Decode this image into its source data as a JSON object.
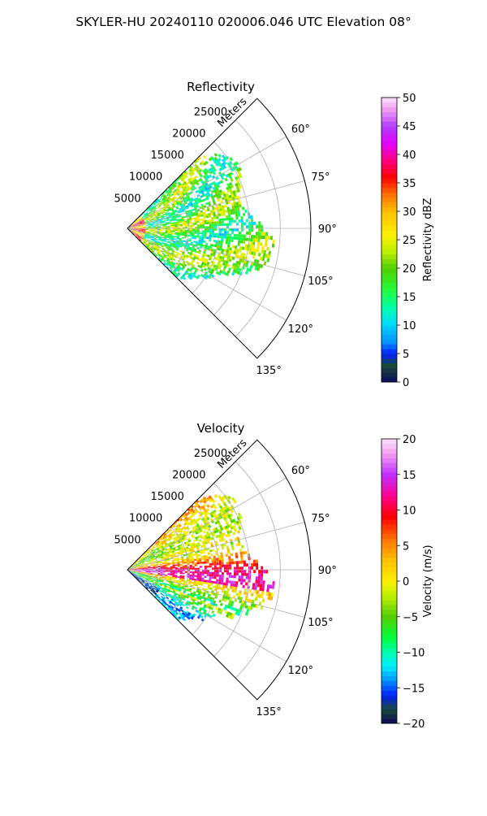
{
  "figure_title": "SKYLER-HU  20240110  020006.046 UTC Elevation 08°",
  "chart_data": [
    {
      "type": "heatmap",
      "projection": "polar-sector",
      "title": "Reflectivity",
      "radial_label": "Meters",
      "radial_ticks": [
        5000,
        10000,
        15000,
        20000,
        25000
      ],
      "radial_tick_labels": [
        "5000",
        "10000",
        "15000",
        "20000",
        "25000"
      ],
      "rlim": [
        0,
        30000
      ],
      "azimuth_range_deg": [
        45,
        135
      ],
      "azimuth_ticks": [
        60,
        75,
        90,
        105,
        120,
        135
      ],
      "azimuth_tick_labels": [
        "60°",
        "75°",
        "90°",
        "105°",
        "120°",
        "135°"
      ],
      "grid": true,
      "colorbar": {
        "label": "Reflectivity dBZ",
        "range": [
          0,
          50
        ],
        "ticks": [
          0,
          5,
          10,
          15,
          20,
          25,
          30,
          35,
          40,
          45,
          50
        ],
        "tick_labels": [
          "0",
          "5",
          "10",
          "15",
          "20",
          "25",
          "30",
          "35",
          "40",
          "45",
          "50"
        ],
        "colormap_stops": [
          [
            0,
            "#0a0a5a"
          ],
          [
            3,
            "#1a4a3a"
          ],
          [
            5,
            "#0020ff"
          ],
          [
            7,
            "#0090ff"
          ],
          [
            10,
            "#00d8ff"
          ],
          [
            13,
            "#00ffb0"
          ],
          [
            16,
            "#20ff40"
          ],
          [
            20,
            "#50d000"
          ],
          [
            23,
            "#c0f000"
          ],
          [
            26,
            "#fff000"
          ],
          [
            30,
            "#ffc000"
          ],
          [
            33,
            "#ff7000"
          ],
          [
            36,
            "#ff0000"
          ],
          [
            39,
            "#ff0080"
          ],
          [
            42,
            "#e000ff"
          ],
          [
            45,
            "#b040ff"
          ],
          [
            48,
            "#f0a0f0"
          ],
          [
            50,
            "#ffe0ff"
          ]
        ]
      }
    },
    {
      "type": "heatmap",
      "projection": "polar-sector",
      "title": "Velocity",
      "radial_label": "Meters",
      "radial_ticks": [
        5000,
        10000,
        15000,
        20000,
        25000
      ],
      "radial_tick_labels": [
        "5000",
        "10000",
        "15000",
        "20000",
        "25000"
      ],
      "rlim": [
        0,
        30000
      ],
      "azimuth_range_deg": [
        45,
        135
      ],
      "azimuth_ticks": [
        60,
        75,
        90,
        105,
        120,
        135
      ],
      "azimuth_tick_labels": [
        "60°",
        "75°",
        "90°",
        "105°",
        "120°",
        "135°"
      ],
      "grid": true,
      "colorbar": {
        "label": "Velocity (m/s)",
        "range": [
          -20,
          20
        ],
        "ticks": [
          -20,
          -15,
          -10,
          -5,
          0,
          5,
          10,
          15,
          20
        ],
        "tick_labels": [
          "−20",
          "−15",
          "−10",
          "−5",
          "0",
          "5",
          "10",
          "15",
          "20"
        ],
        "colormap_stops": [
          [
            -20,
            "#0a0a5a"
          ],
          [
            -18,
            "#1a4a3a"
          ],
          [
            -16,
            "#0020ff"
          ],
          [
            -14,
            "#0090ff"
          ],
          [
            -12,
            "#00f0ff"
          ],
          [
            -10,
            "#00ffb0"
          ],
          [
            -8,
            "#00ff40"
          ],
          [
            -5,
            "#50d000"
          ],
          [
            -2,
            "#c0f000"
          ],
          [
            0,
            "#fff000"
          ],
          [
            3,
            "#ffc000"
          ],
          [
            6,
            "#ff7000"
          ],
          [
            9,
            "#ff0000"
          ],
          [
            12,
            "#ff0090"
          ],
          [
            15,
            "#c030ff"
          ],
          [
            18,
            "#f0a0f0"
          ],
          [
            20,
            "#ffe0ff"
          ]
        ]
      }
    }
  ]
}
